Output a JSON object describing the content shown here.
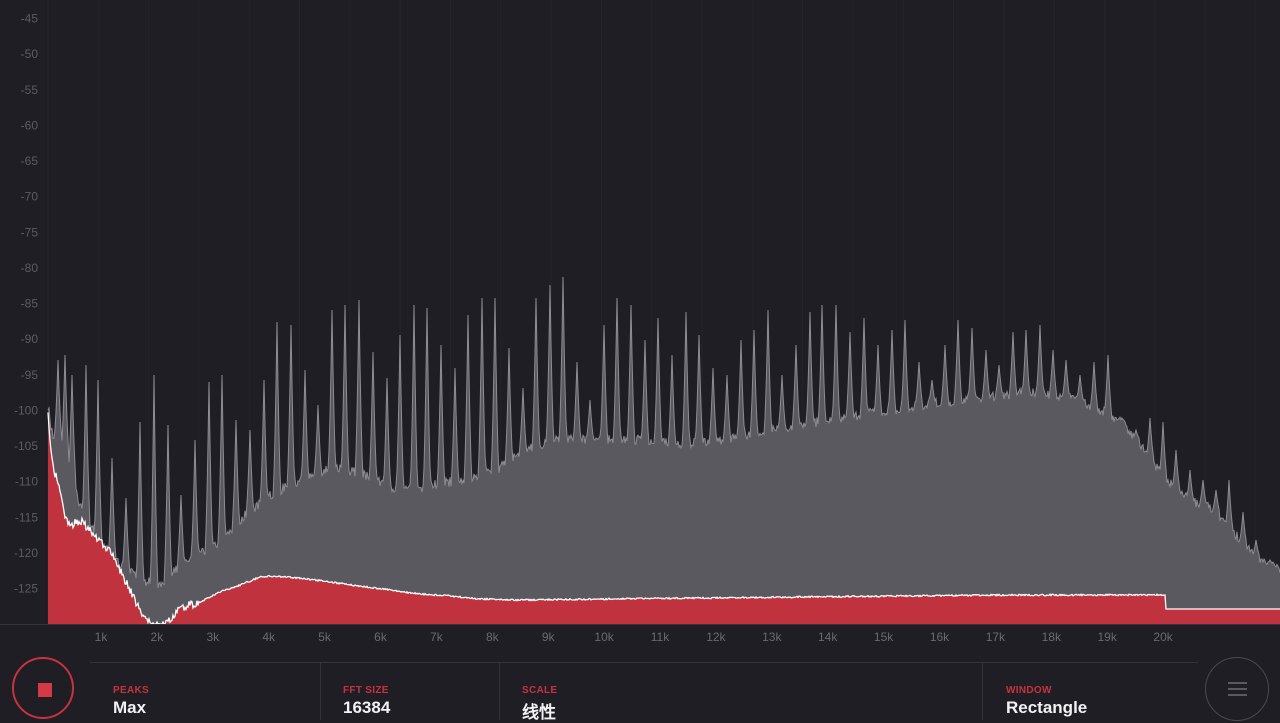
{
  "spectrum": {
    "y_axis": {
      "labels": [
        "-45",
        "-50",
        "-55",
        "-60",
        "-65",
        "-70",
        "-75",
        "-80",
        "-85",
        "-90",
        "-95",
        "-100",
        "-105",
        "-110",
        "-115",
        "-120",
        "-125"
      ],
      "min": -128,
      "max": -43.5,
      "unit": "dB"
    },
    "x_axis": {
      "labels": [
        "1k",
        "2k",
        "3k",
        "4k",
        "5k",
        "6k",
        "7k",
        "8k",
        "9k",
        "10k",
        "11k",
        "12k",
        "13k",
        "14k",
        "15k",
        "16k",
        "17k",
        "18k",
        "19k",
        "20k"
      ],
      "min_hz": 0,
      "max_hz": 22050
    },
    "colors": {
      "background": "#1f1e24",
      "grid": "#26252c",
      "max_fill": "#5a595f",
      "max_outline": "#8d8c92",
      "current_fill": "#c0323d",
      "current_outline": "#ffffff"
    }
  },
  "controls": {
    "peaks": {
      "label": "PEAKS",
      "value": "Max"
    },
    "fft_size": {
      "label": "FFT SIZE",
      "value": "16384"
    },
    "scale": {
      "label": "SCALE",
      "value": "线性"
    },
    "window": {
      "label": "WINDOW",
      "value": "Rectangle"
    }
  },
  "buttons": {
    "stop": "stop-icon",
    "menu": "hamburger-icon"
  }
}
